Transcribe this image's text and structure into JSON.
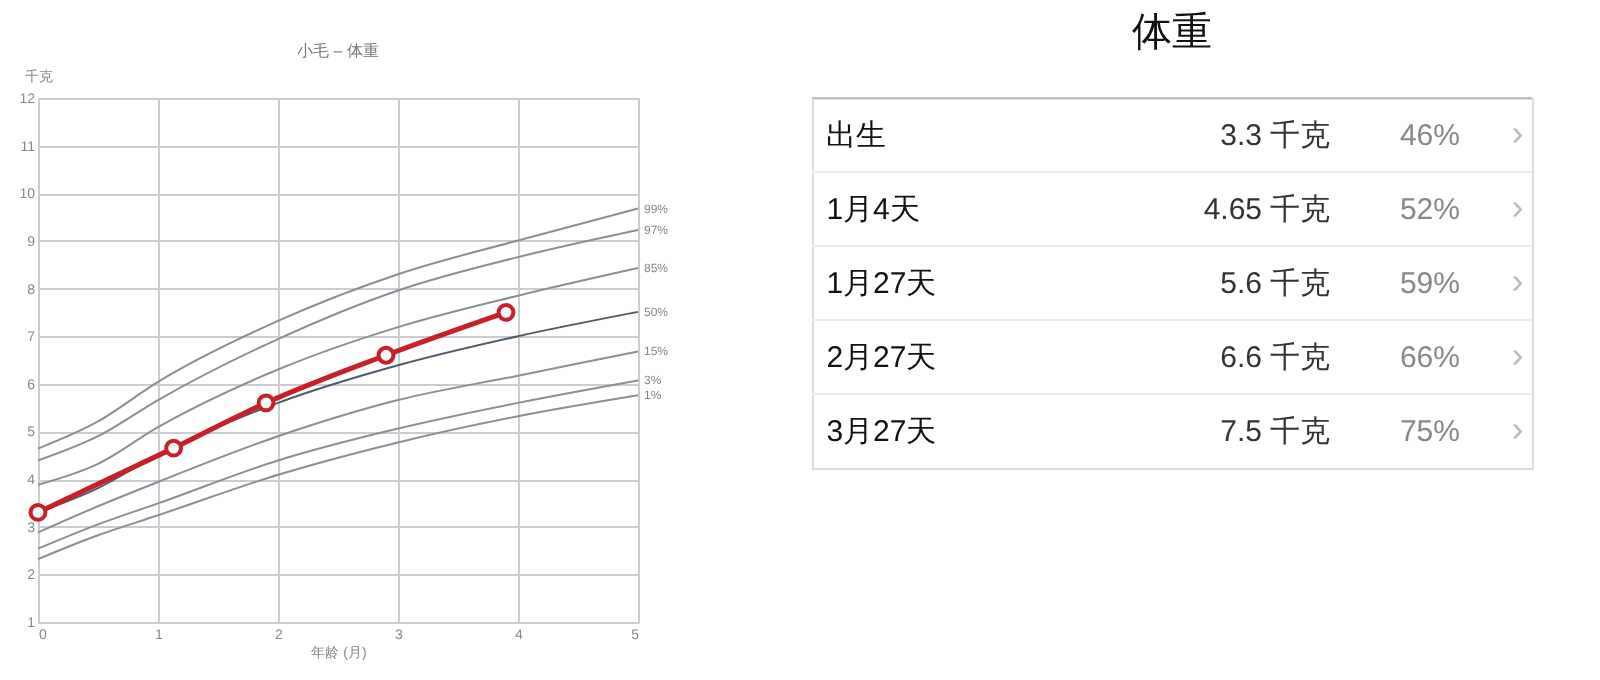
{
  "chart_data": [
    {
      "type": "line",
      "title": "小毛 – 体重",
      "xlabel": "年龄 (月)",
      "ylabel": "千克",
      "xlim": [
        0,
        5
      ],
      "xticks": [
        0,
        1,
        2,
        3,
        4,
        5
      ],
      "ylim": [
        1,
        12
      ],
      "yticks": [
        1,
        2,
        3,
        4,
        5,
        6,
        7,
        8,
        9,
        10,
        11,
        12
      ],
      "grid": true,
      "marker": "none",
      "series": [
        {
          "name": "99%",
          "color": "#8a8f96",
          "x": [
            0,
            0.5,
            1,
            2,
            3,
            4,
            5
          ],
          "values": [
            4.64,
            5.21,
            6.04,
            7.32,
            8.3,
            9.01,
            9.68
          ]
        },
        {
          "name": "97%",
          "color": "#8a8f96",
          "x": [
            0,
            0.5,
            1,
            2,
            3,
            4,
            5
          ],
          "values": [
            4.39,
            4.9,
            5.66,
            6.94,
            7.96,
            8.66,
            9.23
          ]
        },
        {
          "name": "85%",
          "color": "#8a8f96",
          "x": [
            0,
            0.5,
            1,
            2,
            3,
            4,
            5
          ],
          "values": [
            3.88,
            4.32,
            5.09,
            6.3,
            7.19,
            7.85,
            8.43
          ]
        },
        {
          "name": "50%",
          "color": "#4f5b68",
          "x": [
            0,
            0.5,
            1,
            2,
            3,
            4,
            5
          ],
          "values": [
            3.3,
            3.81,
            4.51,
            5.6,
            6.39,
            7.0,
            7.51
          ]
        },
        {
          "name": "15%",
          "color": "#8a8f96",
          "x": [
            0,
            0.5,
            1,
            2,
            3,
            4,
            5
          ],
          "values": [
            2.88,
            3.43,
            3.94,
            4.9,
            5.66,
            6.17,
            6.68
          ]
        },
        {
          "name": "3%",
          "color": "#8a8f96",
          "x": [
            0,
            0.5,
            1,
            2,
            3,
            4,
            5
          ],
          "values": [
            2.54,
            3.05,
            3.49,
            4.39,
            5.06,
            5.6,
            6.07
          ]
        },
        {
          "name": "1%",
          "color": "#8a8f96",
          "x": [
            0,
            0.5,
            1,
            2,
            3,
            4,
            5
          ],
          "values": [
            2.32,
            2.82,
            3.24,
            4.09,
            4.77,
            5.32,
            5.76
          ]
        },
        {
          "color": "#c8202a",
          "marker": "circle",
          "x": [
            0,
            1.13,
            1.9,
            2.9,
            3.9
          ],
          "values": [
            3.3,
            4.65,
            5.6,
            6.6,
            7.5
          ]
        }
      ]
    },
    {
      "type": "other",
      "title": "体重",
      "annotations": [
        "出生",
        "3.3 千克",
        "46%",
        "›",
        "1月4天",
        "4.65 千克",
        "52%",
        "›",
        "1月27天",
        "5.6 千克",
        "59%",
        "›",
        "2月27天",
        "6.6 千克",
        "66%",
        "›",
        "3月27天",
        "7.5 千克",
        "75%",
        "›"
      ]
    }
  ]
}
